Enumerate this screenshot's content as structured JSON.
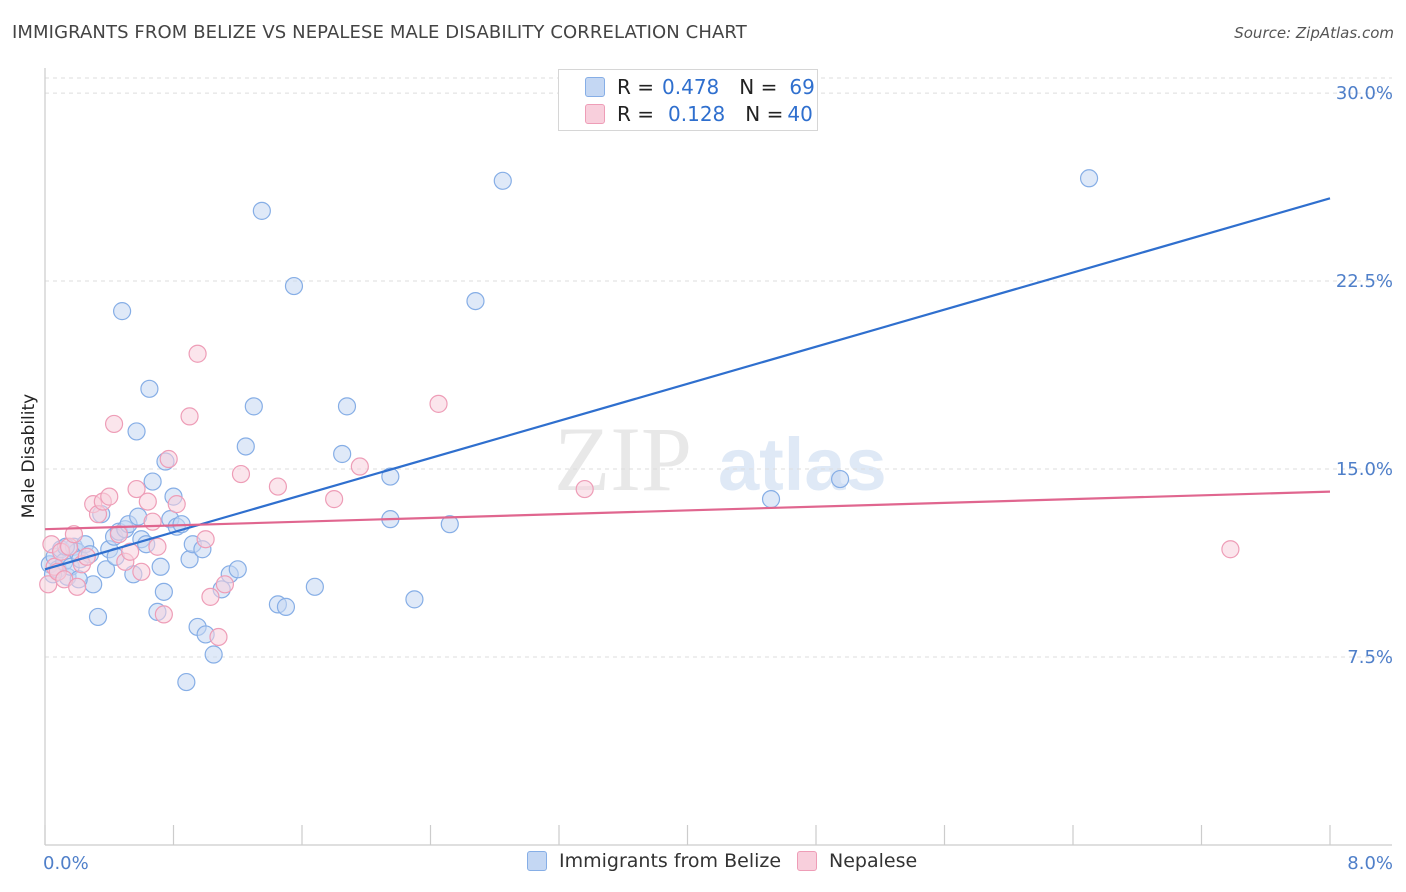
{
  "header": {
    "title": "IMMIGRANTS FROM BELIZE VS NEPALESE MALE DISABILITY CORRELATION CHART",
    "source": "Source: ZipAtlas.com"
  },
  "legend": {
    "rows": [
      {
        "r_label": "R =",
        "r_value": "0.478",
        "n_label": "N =",
        "n_value": "69"
      },
      {
        "r_label": "R =",
        "r_value": "0.128",
        "n_label": "N =",
        "n_value": "40"
      }
    ]
  },
  "bottom_legend": {
    "series1": "Immigrants from Belize",
    "series2": "Nepalese"
  },
  "watermark": {
    "zip": "ZIP",
    "atlas": "atlas"
  },
  "colors": {
    "blue_fill": "#c4d7f3",
    "blue_stroke": "#86aee6",
    "blue_line": "#2f6fce",
    "pink_fill": "#f8cfdc",
    "pink_stroke": "#ee9db7",
    "pink_line": "#e0668f",
    "tick_color": "#4f7fc9"
  },
  "chart_data": {
    "type": "scatter",
    "title": "IMMIGRANTS FROM BELIZE VS NEPALESE MALE DISABILITY CORRELATION CHART",
    "xlabel": "",
    "ylabel": "Male Disability",
    "xlim": [
      0,
      8.0
    ],
    "ylim": [
      0,
      31.0
    ],
    "x_tick_labels": [
      "0.0%",
      "8.0%"
    ],
    "y_ticks": [
      7.5,
      15.0,
      22.5,
      30.0
    ],
    "y_tick_labels": [
      "7.5%",
      "15.0%",
      "22.5%",
      "30.0%"
    ],
    "grid": "horizontal dashed",
    "series": [
      {
        "name": "Immigrants from Belize",
        "R": 0.478,
        "N": 69,
        "trend": {
          "x": [
            0.0,
            8.0
          ],
          "y": [
            11.0,
            25.8
          ]
        },
        "points": [
          {
            "x": 0.03,
            "y": 11.2
          },
          {
            "x": 0.06,
            "y": 11.5
          },
          {
            "x": 0.08,
            "y": 11.0
          },
          {
            "x": 0.1,
            "y": 11.8
          },
          {
            "x": 0.12,
            "y": 11.3
          },
          {
            "x": 0.14,
            "y": 10.7
          },
          {
            "x": 0.16,
            "y": 11.1
          },
          {
            "x": 0.18,
            "y": 11.9
          },
          {
            "x": 0.2,
            "y": 11.7
          },
          {
            "x": 0.22,
            "y": 11.4
          },
          {
            "x": 0.25,
            "y": 12.0
          },
          {
            "x": 0.28,
            "y": 11.6
          },
          {
            "x": 0.3,
            "y": 10.4
          },
          {
            "x": 0.33,
            "y": 9.1
          },
          {
            "x": 0.35,
            "y": 13.2
          },
          {
            "x": 0.38,
            "y": 11.0
          },
          {
            "x": 0.4,
            "y": 11.8
          },
          {
            "x": 0.43,
            "y": 12.3
          },
          {
            "x": 0.46,
            "y": 12.5
          },
          {
            "x": 0.48,
            "y": 21.3
          },
          {
            "x": 0.5,
            "y": 12.6
          },
          {
            "x": 0.52,
            "y": 12.8
          },
          {
            "x": 0.55,
            "y": 10.8
          },
          {
            "x": 0.57,
            "y": 16.5
          },
          {
            "x": 0.6,
            "y": 12.2
          },
          {
            "x": 0.63,
            "y": 12.0
          },
          {
            "x": 0.65,
            "y": 18.2
          },
          {
            "x": 0.67,
            "y": 14.5
          },
          {
            "x": 0.7,
            "y": 9.3
          },
          {
            "x": 0.72,
            "y": 11.1
          },
          {
            "x": 0.75,
            "y": 15.3
          },
          {
            "x": 0.78,
            "y": 13.0
          },
          {
            "x": 0.8,
            "y": 13.9
          },
          {
            "x": 0.82,
            "y": 12.7
          },
          {
            "x": 0.85,
            "y": 12.8
          },
          {
            "x": 0.88,
            "y": 6.5
          },
          {
            "x": 0.9,
            "y": 11.4
          },
          {
            "x": 0.92,
            "y": 12.0
          },
          {
            "x": 0.95,
            "y": 8.7
          },
          {
            "x": 0.98,
            "y": 11.8
          },
          {
            "x": 1.0,
            "y": 8.4
          },
          {
            "x": 1.05,
            "y": 7.6
          },
          {
            "x": 1.1,
            "y": 10.2
          },
          {
            "x": 1.15,
            "y": 10.8
          },
          {
            "x": 1.2,
            "y": 11.0
          },
          {
            "x": 1.25,
            "y": 15.9
          },
          {
            "x": 1.3,
            "y": 17.5
          },
          {
            "x": 1.35,
            "y": 25.3
          },
          {
            "x": 1.45,
            "y": 9.6
          },
          {
            "x": 1.5,
            "y": 9.5
          },
          {
            "x": 1.55,
            "y": 22.3
          },
          {
            "x": 1.68,
            "y": 10.3
          },
          {
            "x": 1.85,
            "y": 15.6
          },
          {
            "x": 1.88,
            "y": 17.5
          },
          {
            "x": 2.15,
            "y": 14.7
          },
          {
            "x": 2.15,
            "y": 13.0
          },
          {
            "x": 2.3,
            "y": 9.8
          },
          {
            "x": 2.52,
            "y": 12.8
          },
          {
            "x": 2.68,
            "y": 21.7
          },
          {
            "x": 2.85,
            "y": 26.5
          },
          {
            "x": 4.52,
            "y": 13.8
          },
          {
            "x": 4.95,
            "y": 14.6
          },
          {
            "x": 6.5,
            "y": 26.6
          },
          {
            "x": 0.13,
            "y": 11.9
          },
          {
            "x": 0.58,
            "y": 13.1
          },
          {
            "x": 0.05,
            "y": 10.8
          },
          {
            "x": 0.74,
            "y": 10.1
          },
          {
            "x": 0.21,
            "y": 10.6
          },
          {
            "x": 0.44,
            "y": 11.5
          }
        ]
      },
      {
        "name": "Nepalese",
        "R": 0.128,
        "N": 40,
        "trend": {
          "x": [
            0.0,
            8.0
          ],
          "y": [
            12.6,
            14.1
          ]
        },
        "points": [
          {
            "x": 0.02,
            "y": 10.4
          },
          {
            "x": 0.04,
            "y": 12.0
          },
          {
            "x": 0.06,
            "y": 11.1
          },
          {
            "x": 0.08,
            "y": 10.9
          },
          {
            "x": 0.1,
            "y": 11.7
          },
          {
            "x": 0.12,
            "y": 10.6
          },
          {
            "x": 0.15,
            "y": 11.9
          },
          {
            "x": 0.18,
            "y": 12.4
          },
          {
            "x": 0.2,
            "y": 10.3
          },
          {
            "x": 0.23,
            "y": 11.2
          },
          {
            "x": 0.26,
            "y": 11.5
          },
          {
            "x": 0.3,
            "y": 13.6
          },
          {
            "x": 0.33,
            "y": 13.2
          },
          {
            "x": 0.36,
            "y": 13.7
          },
          {
            "x": 0.4,
            "y": 13.9
          },
          {
            "x": 0.43,
            "y": 16.8
          },
          {
            "x": 0.46,
            "y": 12.4
          },
          {
            "x": 0.5,
            "y": 11.3
          },
          {
            "x": 0.53,
            "y": 11.7
          },
          {
            "x": 0.57,
            "y": 14.2
          },
          {
            "x": 0.6,
            "y": 10.9
          },
          {
            "x": 0.64,
            "y": 13.7
          },
          {
            "x": 0.67,
            "y": 12.9
          },
          {
            "x": 0.7,
            "y": 11.9
          },
          {
            "x": 0.74,
            "y": 9.2
          },
          {
            "x": 0.77,
            "y": 15.4
          },
          {
            "x": 0.82,
            "y": 13.6
          },
          {
            "x": 0.9,
            "y": 17.1
          },
          {
            "x": 0.95,
            "y": 19.6
          },
          {
            "x": 1.0,
            "y": 12.2
          },
          {
            "x": 1.03,
            "y": 9.9
          },
          {
            "x": 1.08,
            "y": 8.3
          },
          {
            "x": 1.12,
            "y": 10.4
          },
          {
            "x": 1.22,
            "y": 14.8
          },
          {
            "x": 1.45,
            "y": 14.3
          },
          {
            "x": 1.8,
            "y": 13.8
          },
          {
            "x": 1.96,
            "y": 15.1
          },
          {
            "x": 2.45,
            "y": 17.6
          },
          {
            "x": 3.36,
            "y": 14.2
          },
          {
            "x": 7.38,
            "y": 11.8
          }
        ]
      }
    ]
  }
}
